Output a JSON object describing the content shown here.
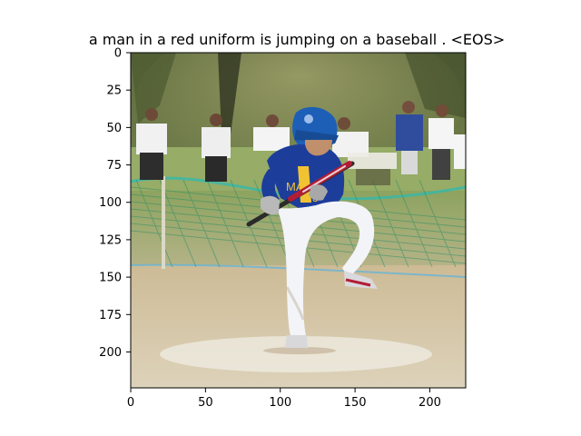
{
  "figure": {
    "title": "a man in a red uniform is jumping on a baseball . <EOS>"
  },
  "axes": {
    "xlim": [
      0,
      224
    ],
    "ylim": [
      224,
      0
    ],
    "x_ticks": [
      0,
      50,
      100,
      150,
      200
    ],
    "y_ticks": [
      0,
      25,
      50,
      75,
      100,
      125,
      150,
      175,
      200
    ]
  },
  "image": {
    "description_elements": [
      "green fence",
      "spectators",
      "baseball player",
      "bat",
      "helmet",
      "field",
      "home plate area"
    ]
  },
  "colors": {
    "grass": "#8a9a54",
    "dirt": "#c7b58c",
    "jersey": "#1d3d9b",
    "pants": "#f3f4f8",
    "helmet": "#1d5fb7",
    "bat": "#b21d35",
    "fence": "#2e9a6f"
  }
}
